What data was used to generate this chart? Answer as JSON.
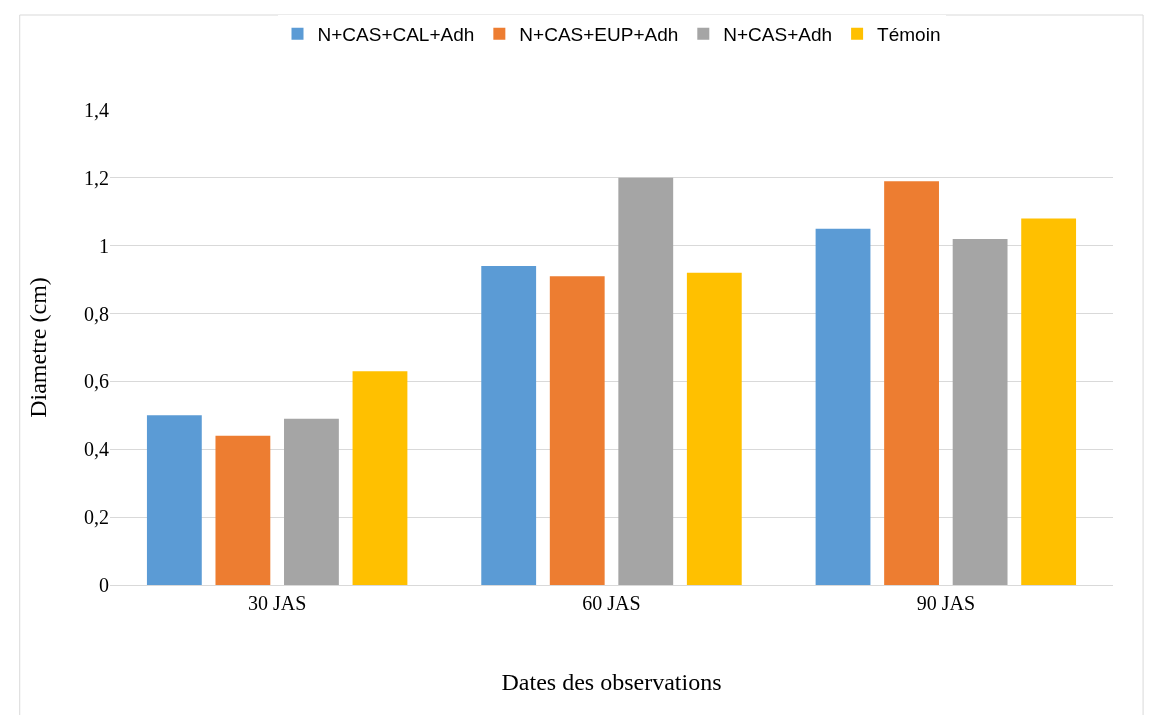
{
  "chart_data": {
    "type": "bar",
    "xlabel": "Dates des observations",
    "ylabel": "Diametre (cm)",
    "categories": [
      "30 JAS",
      "60 JAS",
      "90 JAS"
    ],
    "series": [
      {
        "name": "N+CAS+CAL+Adh",
        "color": "#5b9bd5",
        "values": [
          0.5,
          0.94,
          1.05
        ]
      },
      {
        "name": "N+CAS+EUP+Adh",
        "color": "#ed7d31",
        "values": [
          0.44,
          0.91,
          1.19
        ]
      },
      {
        "name": "N+CAS+Adh",
        "color": "#a5a5a5",
        "values": [
          0.49,
          1.2,
          1.02
        ]
      },
      {
        "name": "Témoin",
        "color": "#ffc000",
        "values": [
          0.63,
          0.92,
          1.08
        ]
      }
    ],
    "ylim": [
      0,
      1.4
    ],
    "yticks": [
      0,
      {
        "value": 0.2,
        "label": "0,2"
      },
      {
        "value": 0.4,
        "label": "0,4"
      },
      {
        "value": 0.6,
        "label": "0,6"
      },
      {
        "value": 0.8,
        "label": "0,8"
      },
      1,
      {
        "value": 1.2,
        "label": "1,2"
      },
      {
        "value": 1.4,
        "label": "1,4"
      }
    ],
    "grid": "y",
    "legend": "top"
  }
}
